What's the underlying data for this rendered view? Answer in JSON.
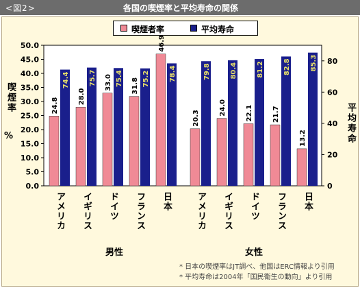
{
  "header": {
    "fig_label": "<図2>",
    "title": "各国の喫煙率と平均寿命の関係"
  },
  "legend": {
    "smoking": "喫煙者率",
    "life": "平均寿命"
  },
  "axes": {
    "left_label": "喫煙率",
    "left_unit": "%",
    "right_label": "平均寿命",
    "left_ticks": [
      "0.0",
      "5.0",
      "10.0",
      "15.0",
      "20.0",
      "25.0",
      "30.0",
      "35.0",
      "40.0",
      "45.0",
      "50.0"
    ],
    "right_ticks": [
      "0",
      "20",
      "40",
      "60",
      "80"
    ]
  },
  "groups": [
    "男性",
    "女性"
  ],
  "notes": [
    "* 日本の喫煙率はJT調べ、他国はERC情報より引用",
    "* 平均寿命は2004年「国民衛生の動向」より引用"
  ],
  "colors": {
    "smoking": "#f08a96",
    "life": "#1a1f8c",
    "background": "#fff9dd",
    "header": "#6c6c6c"
  },
  "chart_data": {
    "type": "bar",
    "categories": [
      "アメリカ",
      "イギリス",
      "ドイツ",
      "フランス",
      "日本",
      "アメリカ",
      "イギリス",
      "ドイツ",
      "フランス",
      "日本"
    ],
    "category_groups": [
      "男性",
      "男性",
      "男性",
      "男性",
      "男性",
      "女性",
      "女性",
      "女性",
      "女性",
      "女性"
    ],
    "series": [
      {
        "name": "喫煙者率",
        "axis": "left",
        "values": [
          24.8,
          28.0,
          33.0,
          31.8,
          46.9,
          20.3,
          24.0,
          22.1,
          21.7,
          13.2
        ],
        "labels": [
          "24.8",
          "28.0",
          "33.0",
          "31.8",
          "46.9",
          "20.3",
          "24.0",
          "22.1",
          "21.7",
          "13.2"
        ]
      },
      {
        "name": "平均寿命",
        "axis": "right",
        "values": [
          74.4,
          75.7,
          75.4,
          75.2,
          78.4,
          79.8,
          80.4,
          81.2,
          82.8,
          85.3
        ],
        "labels": [
          "74.4",
          "75.7",
          "75.4",
          "75.2",
          "78.4",
          "79.8",
          "80.4",
          "81.2",
          "82.8",
          "85.3"
        ]
      }
    ],
    "ylabel": "喫煙率 %",
    "ylabel_right": "平均寿命",
    "ylim": [
      0,
      50
    ],
    "ylim_right": [
      0,
      90
    ],
    "grid": false,
    "legend_position": "top"
  }
}
